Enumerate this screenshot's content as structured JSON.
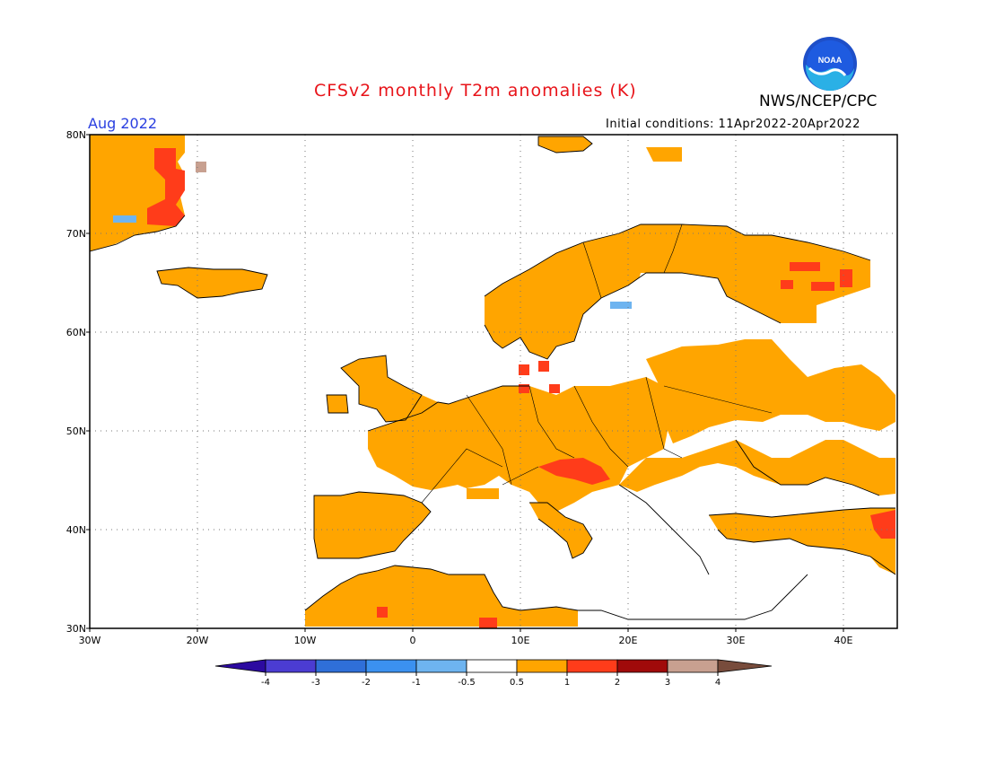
{
  "header": {
    "title": "CFSv2 monthly T2m anomalies (K)",
    "agency": "NWS/NCEP/CPC",
    "month": "Aug 2022",
    "initial_conditions": "Initial conditions: 11Apr2022-20Apr2022",
    "logo_text": "NOAA"
  },
  "map": {
    "lon_range": [
      -30,
      45
    ],
    "lat_range": [
      30,
      80
    ],
    "lon_ticks": [
      "30W",
      "20W",
      "10W",
      "0",
      "10E",
      "20E",
      "30E",
      "40E"
    ],
    "lat_ticks": [
      "30N",
      "40N",
      "50N",
      "60N",
      "70N",
      "80N"
    ],
    "grid": "dotted",
    "regions": [
      {
        "name": "greenland",
        "category": "0.5-1",
        "color": "#ffa500"
      },
      {
        "name": "iceland",
        "category": "0.5-1",
        "color": "#ffa500"
      },
      {
        "name": "scandinavia",
        "category": "0.5-1",
        "color": "#ffa500"
      },
      {
        "name": "western-europe",
        "category": "0.5-1",
        "color": "#ffa500"
      },
      {
        "name": "central-europe",
        "category": "0.5-1",
        "color": "#ffa500"
      },
      {
        "name": "eastern-europe",
        "category": "0.5-1",
        "color": "#ffa500"
      },
      {
        "name": "iberia",
        "category": "0.5-1",
        "color": "#ffa500"
      },
      {
        "name": "north-africa",
        "category": "0.5-1",
        "color": "#ffa500"
      },
      {
        "name": "alps-adriatic",
        "category": "1-2",
        "color": "#ff3c1a"
      },
      {
        "name": "greenland-east-coast",
        "category": "1-2",
        "color": "#ff3c1a"
      },
      {
        "name": "kola-peninsula",
        "category": "1-2",
        "color": "#ff3c1a"
      },
      {
        "name": "southern-baltic",
        "category": "1-2",
        "color": "#ff3c1a"
      },
      {
        "name": "middle-east",
        "category": "1-2",
        "color": "#ff3c1a"
      },
      {
        "name": "greenland-southeast-cool",
        "category": "-1 to -0.5",
        "color": "#6eb4f0"
      },
      {
        "name": "gulf-of-bothnia-cool",
        "category": "-1 to -0.5",
        "color": "#6eb4f0"
      }
    ]
  },
  "legend": {
    "labels": [
      "-4",
      "-3",
      "-2",
      "-1",
      "-0.5",
      "0.5",
      "1",
      "2",
      "3",
      "4"
    ],
    "colors": [
      "#2c0aa0",
      "#4b3cd2",
      "#2f6fd8",
      "#3b91f0",
      "#6eb4f0",
      "#ffffff",
      "#ffa500",
      "#ff3c1a",
      "#a00a0a",
      "#c8a090",
      "#784c3c"
    ]
  }
}
